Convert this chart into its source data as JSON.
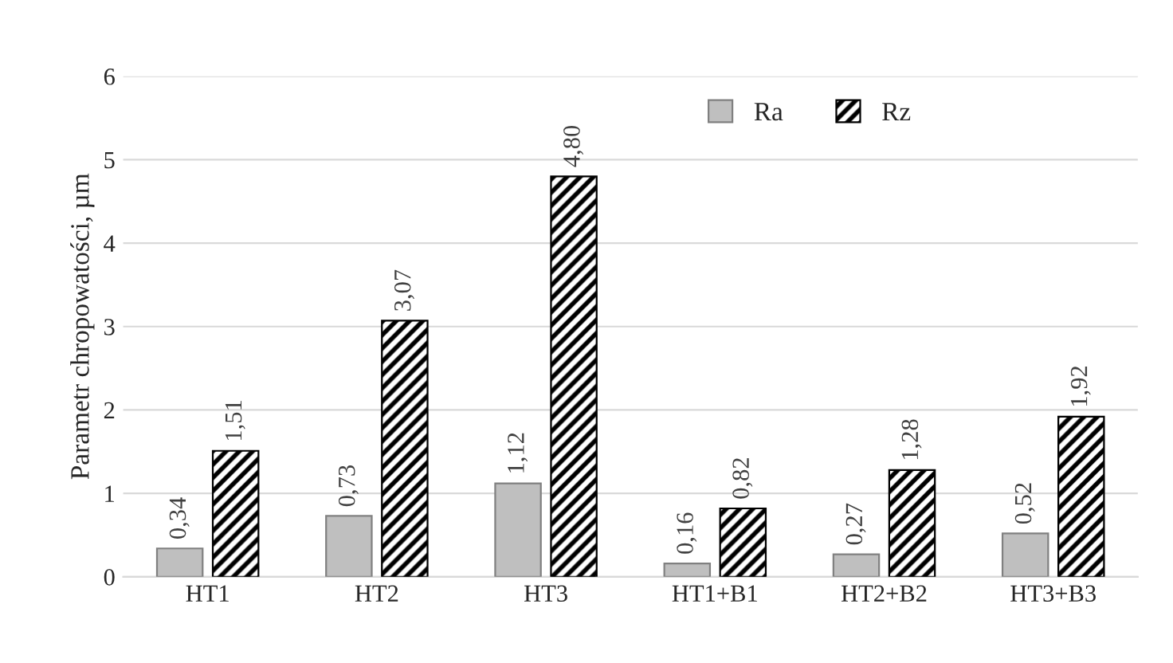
{
  "chart_data": {
    "type": "bar",
    "ylabel": "Parametr chropowatości, µm",
    "categories": [
      "HT1",
      "HT2",
      "HT3",
      "HT1+B1",
      "HT2+B2",
      "HT3+B3"
    ],
    "series": [
      {
        "name": "Ra",
        "color": "#bfbfbf",
        "values": [
          0.34,
          0.73,
          1.12,
          0.16,
          0.27,
          0.52
        ],
        "value_labels": [
          "0,34",
          "0,73",
          "1,12",
          "0,16",
          "0,27",
          "0,52"
        ]
      },
      {
        "name": "Rz",
        "color": "#000000",
        "values": [
          1.51,
          3.07,
          4.8,
          0.82,
          1.28,
          1.92
        ],
        "value_labels": [
          "1,51",
          "3,07",
          "4,80",
          "0,82",
          "1,28",
          "1,92"
        ]
      }
    ],
    "ylim": [
      0,
      6
    ],
    "yticks": [
      0,
      1,
      2,
      3,
      4,
      5,
      6
    ],
    "grid": "y",
    "legend": "top right"
  }
}
